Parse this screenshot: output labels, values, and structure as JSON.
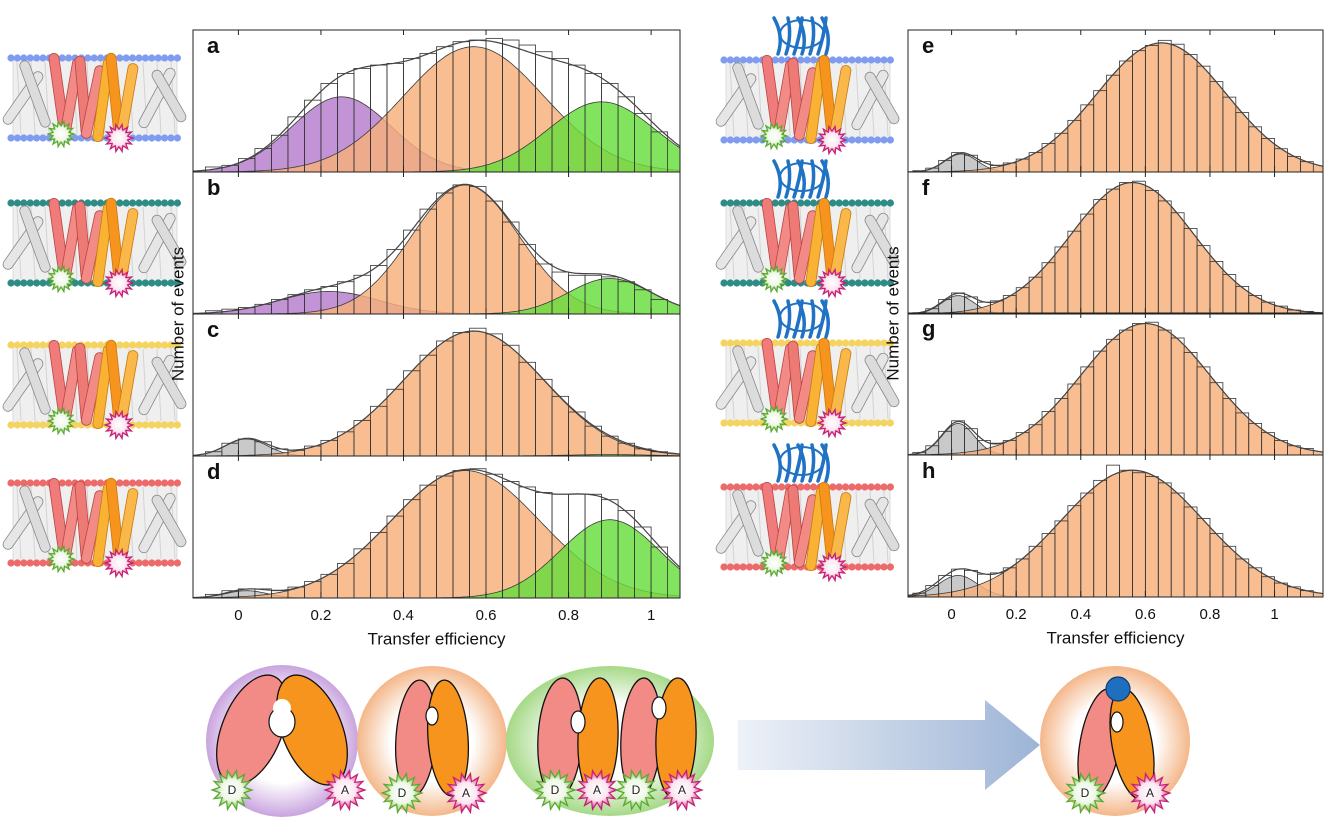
{
  "chart_data": [
    {
      "type": "histogram",
      "label": "a",
      "ylabel": "Number of events",
      "bins": [
        -0.08,
        -0.04,
        0,
        0.04,
        0.08,
        0.12,
        0.16,
        0.2,
        0.24,
        0.28,
        0.32,
        0.36,
        0.4,
        0.44,
        0.48,
        0.52,
        0.56,
        0.6,
        0.64,
        0.68,
        0.72,
        0.76,
        0.8,
        0.84,
        0.88,
        0.92,
        0.96,
        1,
        1.04
      ],
      "counts": [
        3,
        4,
        8,
        14,
        22,
        33,
        43,
        53,
        59,
        62,
        64,
        65,
        68,
        71,
        75,
        78,
        79,
        80,
        79,
        76,
        72,
        68,
        64,
        59,
        53,
        45,
        35,
        24
      ],
      "components": [
        {
          "color": "#b57ccc",
          "center": 0.25,
          "width": 0.12,
          "amplitude": 45
        },
        {
          "color": "#f6b07a",
          "center": 0.57,
          "width": 0.17,
          "amplitude": 75
        },
        {
          "color": "#66dd3c",
          "center": 0.88,
          "width": 0.13,
          "amplitude": 42
        }
      ],
      "xlim": [
        -0.11,
        1.07
      ],
      "ylim": [
        0,
        85
      ],
      "xticks": [
        0,
        0.2,
        0.4,
        0.6,
        0.8,
        1
      ]
    },
    {
      "type": "histogram",
      "label": "b",
      "bins": [
        -0.08,
        -0.04,
        0,
        0.04,
        0.08,
        0.12,
        0.16,
        0.2,
        0.24,
        0.28,
        0.32,
        0.36,
        0.4,
        0.44,
        0.48,
        0.52,
        0.56,
        0.6,
        0.64,
        0.68,
        0.72,
        0.76,
        0.8,
        0.84,
        0.88,
        0.92,
        0.96,
        1,
        1.04
      ],
      "counts": [
        2,
        3,
        4,
        6,
        9,
        12,
        15,
        17,
        20,
        24,
        30,
        40,
        52,
        65,
        75,
        80,
        79,
        70,
        57,
        43,
        31,
        26,
        24,
        24,
        23,
        20,
        15,
        9
      ],
      "components": [
        {
          "color": "#b57ccc",
          "center": 0.22,
          "width": 0.12,
          "amplitude": 14
        },
        {
          "color": "#f6b07a",
          "center": 0.55,
          "width": 0.13,
          "amplitude": 80
        },
        {
          "color": "#66dd3c",
          "center": 0.9,
          "width": 0.1,
          "amplitude": 22
        }
      ],
      "xlim": [
        -0.11,
        1.07
      ],
      "ylim": [
        0,
        88
      ],
      "xticks": [
        0,
        0.2,
        0.4,
        0.6,
        0.8,
        1
      ]
    },
    {
      "type": "histogram",
      "label": "c",
      "bins": [
        -0.08,
        -0.04,
        0,
        0.04,
        0.08,
        0.12,
        0.16,
        0.2,
        0.24,
        0.28,
        0.32,
        0.36,
        0.4,
        0.44,
        0.48,
        0.52,
        0.56,
        0.6,
        0.64,
        0.68,
        0.72,
        0.76,
        0.8,
        0.84,
        0.88,
        0.92,
        0.96,
        1,
        1.04
      ],
      "counts": [
        3,
        9,
        12,
        10,
        5,
        4,
        7,
        11,
        17,
        25,
        35,
        47,
        60,
        71,
        81,
        87,
        90,
        86,
        78,
        66,
        54,
        42,
        31,
        21,
        14,
        9,
        5,
        3
      ],
      "components": [
        {
          "color": "#bdbdbd",
          "center": 0.02,
          "width": 0.05,
          "amplitude": 12
        },
        {
          "color": "#f6b07a",
          "center": 0.57,
          "width": 0.17,
          "amplitude": 88
        },
        {
          "color": "#66dd3c",
          "center": 0.9,
          "width": 0.1,
          "amplitude": 1
        }
      ],
      "xlim": [
        -0.11,
        1.07
      ],
      "ylim": [
        0,
        100
      ],
      "xticks": [
        0,
        0.2,
        0.4,
        0.6,
        0.8,
        1
      ]
    },
    {
      "type": "histogram",
      "label": "d",
      "xlabel": "Transfer efficiency",
      "bins": [
        -0.08,
        -0.04,
        0,
        0.04,
        0.08,
        0.12,
        0.16,
        0.2,
        0.24,
        0.28,
        0.32,
        0.36,
        0.4,
        0.44,
        0.48,
        0.52,
        0.56,
        0.6,
        0.64,
        0.68,
        0.72,
        0.76,
        0.8,
        0.84,
        0.88,
        0.92,
        0.96,
        1,
        1.04
      ],
      "counts": [
        2,
        4,
        5,
        5,
        4,
        6,
        9,
        13,
        19,
        27,
        36,
        45,
        54,
        62,
        67,
        70,
        71,
        68,
        64,
        61,
        58,
        57,
        57,
        57,
        54,
        48,
        39,
        28
      ],
      "components": [
        {
          "color": "#bdbdbd",
          "center": 0.02,
          "width": 0.05,
          "amplitude": 4
        },
        {
          "color": "#f6b07a",
          "center": 0.55,
          "width": 0.18,
          "amplitude": 70
        },
        {
          "color": "#66dd3c",
          "center": 0.9,
          "width": 0.12,
          "amplitude": 43
        }
      ],
      "xlim": [
        -0.11,
        1.07
      ],
      "ylim": [
        0,
        78
      ],
      "xticks": [
        0,
        0.2,
        0.4,
        0.6,
        0.8,
        1
      ]
    },
    {
      "type": "histogram",
      "label": "e",
      "ylabel": "Number of events",
      "bins": [
        -0.12,
        -0.08,
        -0.04,
        0,
        0.04,
        0.08,
        0.12,
        0.16,
        0.2,
        0.24,
        0.28,
        0.32,
        0.36,
        0.4,
        0.44,
        0.48,
        0.52,
        0.56,
        0.6,
        0.64,
        0.68,
        0.72,
        0.76,
        0.8,
        0.84,
        0.88,
        0.92,
        0.96,
        1,
        1.04,
        1.08,
        1.12
      ],
      "counts": [
        1,
        3,
        9,
        15,
        13,
        8,
        5,
        7,
        10,
        15,
        22,
        30,
        40,
        52,
        63,
        75,
        86,
        94,
        98,
        102,
        99,
        91,
        82,
        70,
        58,
        46,
        35,
        26,
        18,
        12,
        8
      ],
      "components": [
        {
          "color": "#bdbdbd",
          "center": 0.03,
          "width": 0.05,
          "amplitude": 14
        },
        {
          "color": "#f6b07a",
          "center": 0.65,
          "width": 0.2,
          "amplitude": 100
        }
      ],
      "xlim": [
        -0.135,
        1.15
      ],
      "ylim": [
        0,
        110
      ],
      "xticks": [
        0,
        0.2,
        0.4,
        0.6,
        0.8,
        1
      ]
    },
    {
      "type": "histogram",
      "label": "f",
      "bins": [
        -0.12,
        -0.08,
        -0.04,
        0,
        0.04,
        0.08,
        0.12,
        0.16,
        0.2,
        0.24,
        0.28,
        0.32,
        0.36,
        0.4,
        0.44,
        0.48,
        0.52,
        0.56,
        0.6,
        0.64,
        0.68,
        0.72,
        0.76,
        0.8,
        0.84,
        0.88,
        0.92,
        0.96,
        1,
        1.04,
        1.08,
        1.12
      ],
      "counts": [
        1,
        4,
        11,
        16,
        13,
        9,
        10,
        14,
        20,
        28,
        39,
        51,
        63,
        76,
        87,
        95,
        100,
        101,
        94,
        86,
        77,
        65,
        52,
        40,
        30,
        21,
        14,
        9,
        6,
        3,
        2
      ],
      "components": [
        {
          "color": "#bdbdbd",
          "center": 0.02,
          "width": 0.05,
          "amplitude": 14
        },
        {
          "color": "#f6b07a",
          "center": 0.56,
          "width": 0.19,
          "amplitude": 100
        }
      ],
      "xlim": [
        -0.135,
        1.15
      ],
      "ylim": [
        0,
        108
      ],
      "xticks": [
        0,
        0.2,
        0.4,
        0.6,
        0.8,
        1
      ]
    },
    {
      "type": "histogram",
      "label": "g",
      "bins": [
        -0.12,
        -0.08,
        -0.04,
        0,
        0.04,
        0.08,
        0.12,
        0.16,
        0.2,
        0.24,
        0.28,
        0.32,
        0.36,
        0.4,
        0.44,
        0.48,
        0.52,
        0.56,
        0.6,
        0.64,
        0.68,
        0.72,
        0.76,
        0.8,
        0.84,
        0.88,
        0.92,
        0.96,
        1,
        1.04,
        1.08,
        1.12
      ],
      "counts": [
        2,
        7,
        18,
        26,
        20,
        11,
        9,
        11,
        17,
        23,
        33,
        43,
        54,
        67,
        79,
        88,
        95,
        100,
        101,
        95,
        89,
        78,
        67,
        55,
        43,
        32,
        24,
        17,
        11,
        7,
        5
      ],
      "components": [
        {
          "color": "#bdbdbd",
          "center": 0.02,
          "width": 0.05,
          "amplitude": 24
        },
        {
          "color": "#f6b07a",
          "center": 0.6,
          "width": 0.2,
          "amplitude": 100
        }
      ],
      "xlim": [
        -0.135,
        1.15
      ],
      "ylim": [
        0,
        108
      ],
      "xticks": [
        0,
        0.2,
        0.4,
        0.6,
        0.8,
        1
      ]
    },
    {
      "type": "histogram",
      "label": "h",
      "xlabel": "Transfer efficiency",
      "bins": [
        -0.12,
        -0.08,
        -0.04,
        0,
        0.04,
        0.08,
        0.12,
        0.16,
        0.2,
        0.24,
        0.28,
        0.32,
        0.36,
        0.4,
        0.44,
        0.48,
        0.52,
        0.56,
        0.6,
        0.64,
        0.68,
        0.72,
        0.76,
        0.8,
        0.84,
        0.88,
        0.92,
        0.96,
        1,
        1.04,
        1.08,
        1.12
      ],
      "counts": [
        3,
        9,
        17,
        22,
        21,
        18,
        19,
        23,
        30,
        40,
        50,
        60,
        72,
        82,
        92,
        104,
        100,
        98,
        95,
        90,
        82,
        71,
        62,
        50,
        40,
        30,
        23,
        16,
        11,
        8,
        5
      ],
      "components": [
        {
          "color": "#bdbdbd",
          "center": 0.02,
          "width": 0.06,
          "amplitude": 17
        },
        {
          "color": "#f6b07a",
          "center": 0.56,
          "width": 0.22,
          "amplitude": 100
        }
      ],
      "xlim": [
        -0.135,
        1.15
      ],
      "ylim": [
        0,
        112
      ],
      "xticks": [
        0,
        0.2,
        0.4,
        0.6,
        0.8,
        1
      ]
    }
  ],
  "schematic": {
    "donor_label": "D",
    "acceptor_label": "A"
  }
}
